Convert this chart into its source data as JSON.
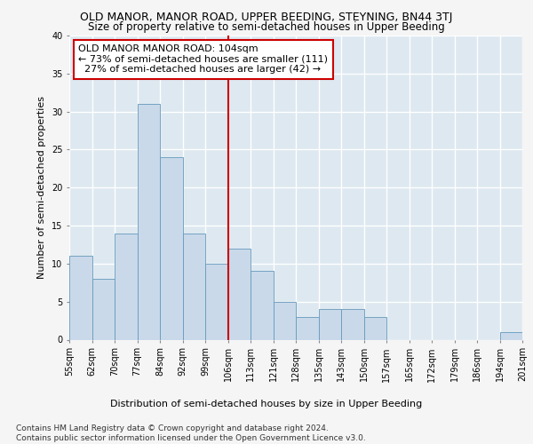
{
  "title": "OLD MANOR, MANOR ROAD, UPPER BEEDING, STEYNING, BN44 3TJ",
  "subtitle": "Size of property relative to semi-detached houses in Upper Beeding",
  "xlabel_bottom": "Distribution of semi-detached houses by size in Upper Beeding",
  "ylabel": "Number of semi-detached properties",
  "footnote": "Contains HM Land Registry data © Crown copyright and database right 2024.\nContains public sector information licensed under the Open Government Licence v3.0.",
  "bar_labels": [
    "55sqm",
    "62sqm",
    "70sqm",
    "77sqm",
    "84sqm",
    "92sqm",
    "99sqm",
    "106sqm",
    "113sqm",
    "121sqm",
    "128sqm",
    "135sqm",
    "143sqm",
    "150sqm",
    "157sqm",
    "165sqm",
    "172sqm",
    "179sqm",
    "186sqm",
    "194sqm",
    "201sqm"
  ],
  "bar_values": [
    11,
    8,
    14,
    31,
    24,
    14,
    10,
    12,
    9,
    5,
    3,
    4,
    4,
    3,
    0,
    0,
    0,
    0,
    0,
    1
  ],
  "bar_color": "#c9d9ea",
  "bar_edge_color": "#6699bb",
  "reference_line_index": 7,
  "reference_line_color": "#cc0000",
  "annotation_line1": "OLD MANOR MANOR ROAD: 104sqm",
  "annotation_line2": "← 73% of semi-detached houses are smaller (111)",
  "annotation_line3": "  27% of semi-detached houses are larger (42) →",
  "annotation_box_facecolor": "#ffffff",
  "annotation_box_edgecolor": "#cc0000",
  "ylim": [
    0,
    40
  ],
  "yticks": [
    0,
    5,
    10,
    15,
    20,
    25,
    30,
    35,
    40
  ],
  "plot_background_color": "#dde8f0",
  "grid_color": "#ffffff",
  "fig_background_color": "#f5f5f5",
  "title_fontsize": 9,
  "subtitle_fontsize": 8.5,
  "axis_label_fontsize": 8,
  "tick_fontsize": 7,
  "annotation_fontsize": 8,
  "footnote_fontsize": 6.5
}
